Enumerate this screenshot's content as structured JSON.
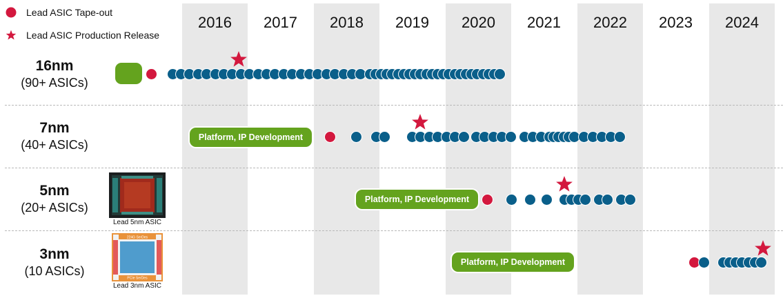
{
  "legend": {
    "tapeout": "Lead ASIC Tape-out",
    "release": "Lead ASIC Production Release"
  },
  "years": [
    "2016",
    "2017",
    "2018",
    "2019",
    "2020",
    "2021",
    "2022",
    "2023",
    "2024"
  ],
  "shaded_years": [
    "2016",
    "2018",
    "2020",
    "2022",
    "2024"
  ],
  "colors": {
    "blue_dot": "#0a5f8a",
    "red_dot": "#d3183e",
    "green_pill": "#64a31e",
    "band": "#e8e8e8"
  },
  "rows": [
    {
      "id": "16nm",
      "node": "16nm",
      "count": "(90+ ASICs)",
      "platform_label": "",
      "chip_caption": ""
    },
    {
      "id": "7nm",
      "node": "7nm",
      "count": "(40+ ASICs)",
      "platform_label": "Platform, IP Development",
      "chip_caption": ""
    },
    {
      "id": "5nm",
      "node": "5nm",
      "count": "(20+ ASICs)",
      "platform_label": "Platform, IP Development",
      "chip_caption": "Lead 5nm ASIC"
    },
    {
      "id": "3nm",
      "node": "3nm",
      "count": "(10 ASICs)",
      "platform_label": "Platform, IP Development",
      "chip_caption": "Lead 3nm ASIC",
      "chip_labels": {
        "top": "224G SerDes",
        "bottom": "PCIe SerDes"
      }
    }
  ]
}
